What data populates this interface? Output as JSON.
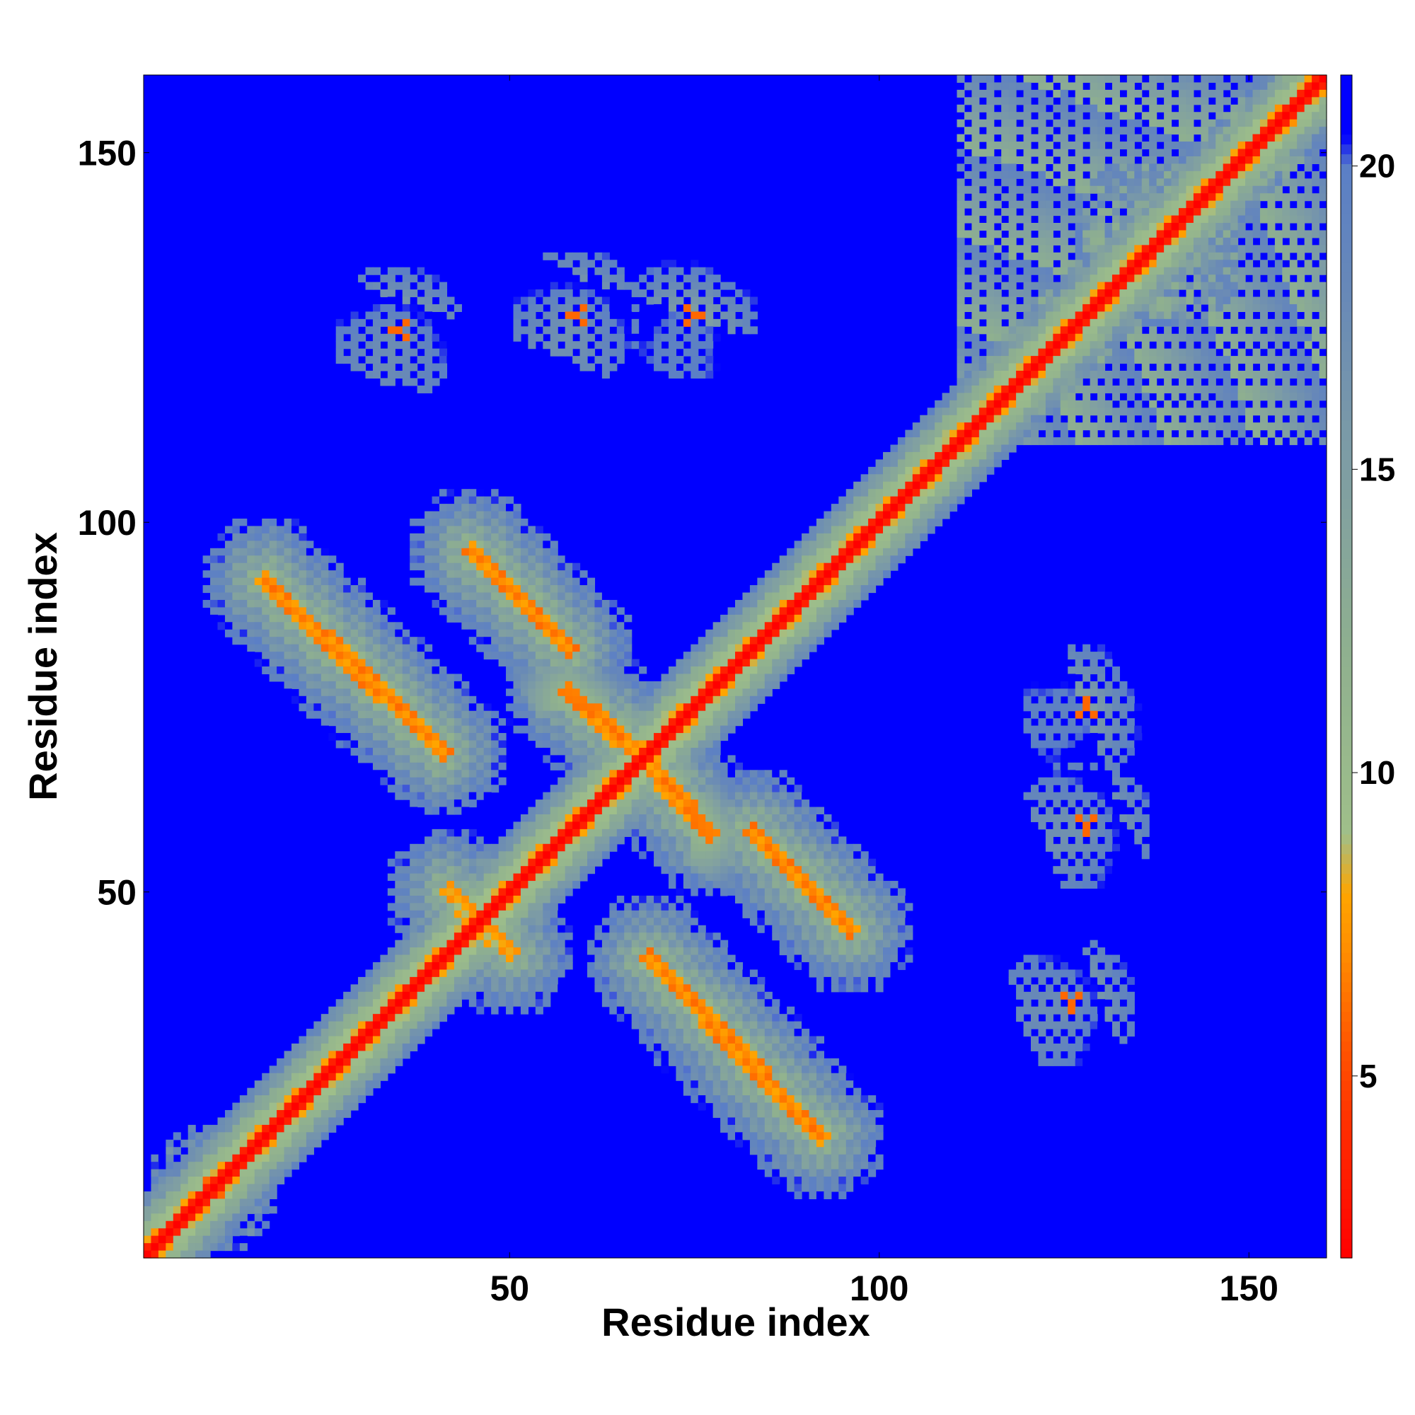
{
  "chart_data": {
    "type": "heatmap",
    "title": "",
    "xlabel": "Residue index",
    "ylabel": "Residue index",
    "n_residues": 160,
    "xlim": [
      1,
      160
    ],
    "ylim": [
      1,
      160
    ],
    "x_ticks": [
      {
        "value": 50,
        "label": "50"
      },
      {
        "value": 100,
        "label": "100"
      },
      {
        "value": 150,
        "label": "150"
      }
    ],
    "y_ticks": [
      {
        "value": 50,
        "label": "50"
      },
      {
        "value": 100,
        "label": "100"
      },
      {
        "value": 150,
        "label": "150"
      }
    ],
    "colorbar": {
      "range": [
        2,
        21.5
      ],
      "ticks": [
        {
          "value": 5,
          "label": "5"
        },
        {
          "value": 10,
          "label": "10"
        },
        {
          "value": 15,
          "label": "15"
        },
        {
          "value": 20,
          "label": "20"
        }
      ],
      "stops": [
        {
          "value": 2,
          "color": "#ff0000"
        },
        {
          "value": 4,
          "color": "#ff2a00"
        },
        {
          "value": 5.5,
          "color": "#ff5500"
        },
        {
          "value": 7,
          "color": "#ff8c00"
        },
        {
          "value": 8,
          "color": "#ffa500"
        },
        {
          "value": 9,
          "color": "#9fbf8a"
        },
        {
          "value": 12,
          "color": "#8fb08f"
        },
        {
          "value": 15,
          "color": "#7f9ea3"
        },
        {
          "value": 18,
          "color": "#6788b8"
        },
        {
          "value": 20,
          "color": "#5b7fc6"
        },
        {
          "value": 20.5,
          "color": "#0000ff"
        },
        {
          "value": 21.5,
          "color": "#0000ff"
        }
      ]
    },
    "background_value": 21.5,
    "features": {
      "main_diagonal": {
        "from": 1,
        "to": 160,
        "value": 2
      },
      "antiparallel_contacts": [
        {
          "from": [
            17,
            92
          ],
          "to": [
            41,
            69
          ],
          "value": 6
        },
        {
          "from": [
            45,
            96
          ],
          "to": [
            58,
            83
          ],
          "value": 6
        },
        {
          "from": [
            58,
            77
          ],
          "to": [
            68,
            68
          ],
          "value": 6
        },
        {
          "from": [
            68,
            68
          ],
          "to": [
            86,
            55
          ],
          "value": 6
        },
        {
          "from": [
            84,
            59
          ],
          "to": [
            97,
            46
          ],
          "value": 6
        },
        {
          "from": [
            69,
            41
          ],
          "to": [
            92,
            18
          ],
          "value": 6
        },
        {
          "from": [
            42,
            50
          ],
          "to": [
            48,
            43
          ],
          "value": 7
        }
      ],
      "contact_clusters": [
        {
          "center": [
            35,
            126
          ],
          "value": 14
        },
        {
          "center": [
            59,
            128
          ],
          "value": 14
        },
        {
          "center": [
            75,
            128
          ],
          "value": 14
        },
        {
          "center": [
            135,
            72
          ],
          "value": 14
        },
        {
          "center": [
            136,
            59
          ],
          "value": 14
        },
        {
          "center": [
            135,
            35
          ],
          "value": 14
        },
        {
          "center": [
            135,
            140
          ],
          "value": 13
        },
        {
          "center": [
            10,
            10
          ],
          "value": 12
        }
      ]
    }
  }
}
